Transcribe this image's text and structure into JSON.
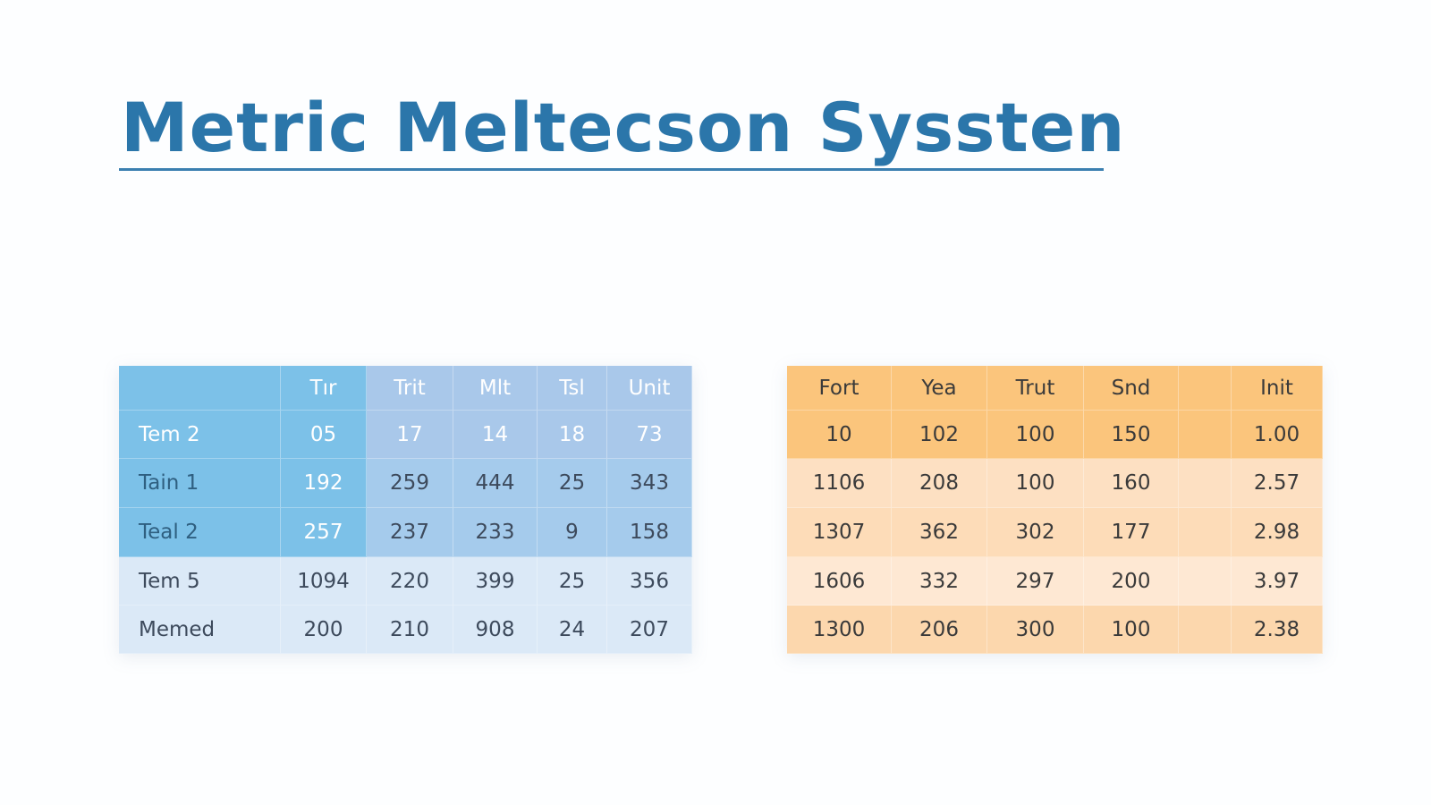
{
  "header": {
    "title": "Metric Meltecson Syssten"
  },
  "tables": [
    {
      "header": [
        "Tır",
        "Trit",
        "Mlt",
        "Tsl",
        "Unit"
      ],
      "rows": [
        [
          "Tem 2",
          "05",
          "17",
          "14",
          "18",
          "73"
        ],
        [
          "Tain 1",
          "192",
          "259",
          "444",
          "25",
          "343"
        ],
        [
          "Teal 2",
          "257",
          "237",
          "233",
          "9",
          "158"
        ],
        [
          "Tem 5",
          "1094",
          "220",
          "399",
          "25",
          "356"
        ],
        [
          "Memed",
          "200",
          "210",
          "908",
          "24",
          "207"
        ]
      ]
    },
    {
      "header": [
        "Fort",
        "Yea",
        "Trut",
        "Snd",
        "Init"
      ],
      "rows": [
        [
          "10",
          "102",
          "100",
          "150",
          "1.00"
        ],
        [
          "1106",
          "208",
          "100",
          "160",
          "2.57"
        ],
        [
          "1307",
          "362",
          "302",
          "177",
          "2.98"
        ],
        [
          "1606",
          "332",
          "297",
          "200",
          "3.97"
        ],
        [
          "1300",
          "206",
          "300",
          "100",
          "2.38"
        ]
      ]
    }
  ]
}
